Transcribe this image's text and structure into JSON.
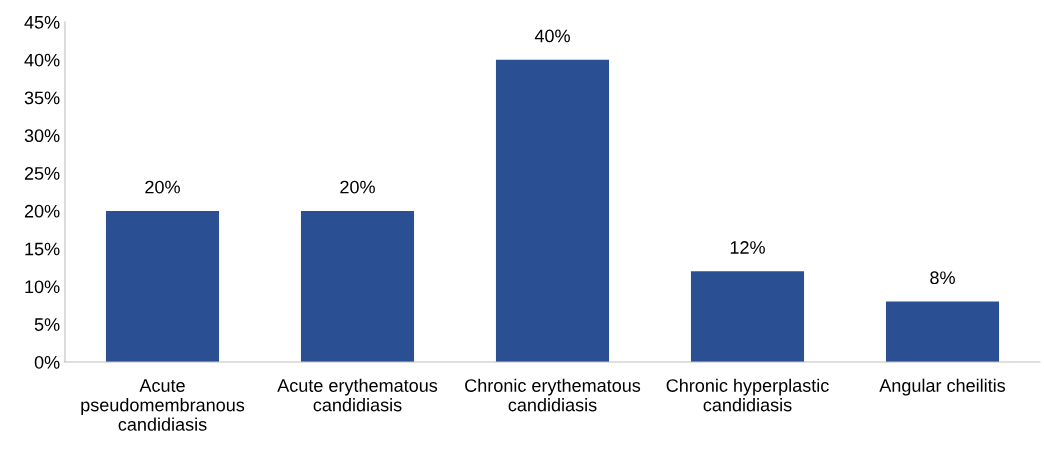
{
  "chart_data": {
    "type": "bar",
    "categories": [
      "Acute\npseudomembranous\ncandidiasis",
      "Acute erythematous\ncandidiasis",
      "Chronic erythematous\ncandidiasis",
      "Chronic hyperplastic\ncandidiasis",
      "Angular cheilitis"
    ],
    "values": [
      20,
      20,
      40,
      12,
      8
    ],
    "value_labels": [
      "20%",
      "20%",
      "40%",
      "12%",
      "8%"
    ],
    "color": "#2b4f93",
    "ylim": [
      0,
      45
    ],
    "yticks": [
      {
        "value": 0,
        "label": "0%"
      },
      {
        "value": 5,
        "label": "5%"
      },
      {
        "value": 10,
        "label": "10%"
      },
      {
        "value": 15,
        "label": "15%"
      },
      {
        "value": 20,
        "label": "20%"
      },
      {
        "value": 25,
        "label": "25%"
      },
      {
        "value": 30,
        "label": "30%"
      },
      {
        "value": 35,
        "label": "35%"
      },
      {
        "value": 40,
        "label": "40%"
      },
      {
        "value": 45,
        "label": "45%"
      }
    ],
    "grid": false,
    "legend": false
  }
}
